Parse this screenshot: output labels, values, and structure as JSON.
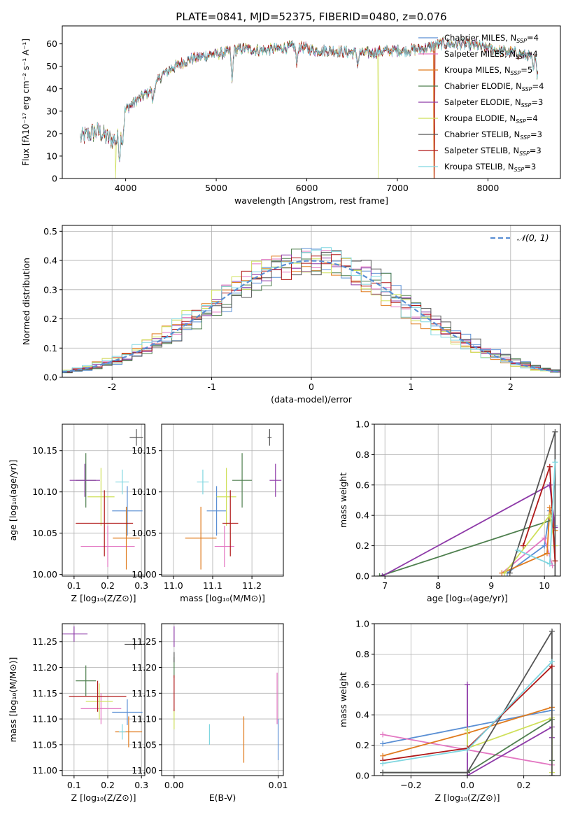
{
  "figure_title": "PLATE=0841, MJD=52375, FIBERID=0480, z=0.076",
  "colors": [
    "#5a8fd4",
    "#e377c2",
    "#e07b1e",
    "#4e7f4e",
    "#8e3aa8",
    "#cfe05a",
    "#555555",
    "#b01818",
    "#7fd6e0"
  ],
  "chart_data": [
    {
      "id": "spectrum",
      "type": "line",
      "xlabel": "wavelength [Angstrom, rest frame]",
      "ylabel": "Flux [fλ10⁻¹⁷ erg cm⁻² s⁻¹ A⁻¹]",
      "xlim": [
        3300,
        8800
      ],
      "ylim": [
        0,
        68
      ],
      "xticks": [
        4000,
        5000,
        6000,
        7000,
        8000
      ],
      "yticks": [
        0,
        10,
        20,
        30,
        40,
        50,
        60
      ],
      "grid": false,
      "legend_position": "upper-right",
      "series": [
        {
          "name": "Chabrier MILES, N",
          "suffix": "=4",
          "color": "#5a8fd4"
        },
        {
          "name": "Salpeter MILES, N",
          "suffix": "=4",
          "color": "#e377c2"
        },
        {
          "name": "Kroupa MILES, N",
          "suffix": "=5",
          "color": "#e07b1e"
        },
        {
          "name": "Chabrier ELODIE, N",
          "suffix": "=4",
          "color": "#4e7f4e"
        },
        {
          "name": "Salpeter ELODIE, N",
          "suffix": "=3",
          "color": "#8e3aa8"
        },
        {
          "name": "Kroupa ELODIE, N",
          "suffix": "=4",
          "color": "#cfe05a"
        },
        {
          "name": "Chabrier STELIB, N",
          "suffix": "=3",
          "color": "#555555"
        },
        {
          "name": "Salpeter STELIB, N",
          "suffix": "=3",
          "color": "#b01818"
        },
        {
          "name": "Kroupa STELIB, N",
          "suffix": "=3",
          "color": "#7fd6e0"
        }
      ],
      "legend_subscript": "SSP",
      "continuum": {
        "x": [
          3500,
          3600,
          3700,
          3800,
          3900,
          3950,
          4000,
          4100,
          4200,
          4300,
          4400,
          4500,
          4700,
          4900,
          5100,
          5300,
          5500,
          5700,
          5900,
          6100,
          6300,
          6500,
          6700,
          6900,
          7100,
          7300,
          7500,
          7700,
          7900,
          8100,
          8300,
          8500
        ],
        "y": [
          18,
          20,
          21,
          18,
          17,
          22,
          31,
          34,
          37,
          40,
          46,
          49,
          53,
          55,
          56,
          58,
          57,
          58,
          59,
          57,
          57,
          56,
          56,
          57,
          57,
          58,
          60,
          60,
          59,
          57,
          56,
          54
        ]
      },
      "dips": [
        {
          "series": 5,
          "x": 3890,
          "y": 0
        },
        {
          "series": 5,
          "x": 6790,
          "y": 0
        },
        {
          "series": 7,
          "x": 7410,
          "y": 0
        },
        {
          "series": 2,
          "x": 7405,
          "y": 0
        }
      ],
      "features": [
        {
          "x": 3934,
          "depth": 10
        },
        {
          "x": 3968,
          "depth": 8
        },
        {
          "x": 4300,
          "depth": 6
        },
        {
          "x": 5175,
          "depth": 14
        },
        {
          "x": 5890,
          "depth": 9
        },
        {
          "x": 6563,
          "depth": 5
        },
        {
          "x": 8500,
          "depth": 6
        },
        {
          "x": 8542,
          "depth": 7
        },
        {
          "x": 8662,
          "depth": 6
        }
      ]
    },
    {
      "id": "residuals",
      "type": "step",
      "xlabel": "(data-model)/error",
      "ylabel": "Normed distribution",
      "xlim": [
        -2.5,
        2.5
      ],
      "ylim": [
        0,
        0.52
      ],
      "xticks": [
        -2,
        -1,
        0,
        1,
        2
      ],
      "yticks": [
        0.0,
        0.1,
        0.2,
        0.3,
        0.4,
        0.5
      ],
      "ytick_labels": [
        "0.0",
        "0.1",
        "0.2",
        "0.3",
        "0.4",
        "0.5"
      ],
      "grid": true,
      "legend_position": "upper-right",
      "reference_curve": {
        "label": "𝒩(0, 1)",
        "mean": 0,
        "sigma": 1,
        "color": "#5a8fd4"
      },
      "bin_width": 0.1,
      "bin_start": -2.5
    },
    {
      "id": "age-vs-Z",
      "type": "errorbar",
      "xlabel": "Z [log₁₀(Z/Z⊙)]",
      "ylabel": "age  [log₁₀(age/yr)]",
      "xlim": [
        0.065,
        0.31
      ],
      "ylim": [
        9.998,
        10.182
      ],
      "xticks": [
        0.1,
        0.2,
        0.3
      ],
      "xtick_labels": [
        "0.1",
        "0.2",
        "0.3"
      ],
      "yticks": [
        10.0,
        10.05,
        10.1,
        10.15
      ],
      "ytick_labels": [
        "10.00",
        "10.05",
        "10.10",
        "10.15"
      ],
      "grid": true,
      "points": [
        {
          "series": 0,
          "x": 0.258,
          "y": 10.077,
          "xerr": 0.045,
          "yerr": 0.03
        },
        {
          "series": 1,
          "x": 0.2,
          "y": 10.034,
          "xerr": 0.08,
          "yerr": 0.025
        },
        {
          "series": 2,
          "x": 0.255,
          "y": 10.044,
          "xerr": 0.04,
          "yerr": 0.038
        },
        {
          "series": 3,
          "x": 0.135,
          "y": 10.114,
          "xerr": 0.03,
          "yerr": 0.033
        },
        {
          "series": 4,
          "x": 0.132,
          "y": 10.114,
          "xerr": 0.045,
          "yerr": 0.02
        },
        {
          "series": 5,
          "x": 0.18,
          "y": 10.094,
          "xerr": 0.04,
          "yerr": 0.035
        },
        {
          "series": 6,
          "x": 0.285,
          "y": 10.166,
          "xerr": 0.02,
          "yerr": 0.01
        },
        {
          "series": 7,
          "x": 0.19,
          "y": 10.062,
          "xerr": 0.085,
          "yerr": 0.04
        },
        {
          "series": 8,
          "x": 0.243,
          "y": 10.112,
          "xerr": 0.02,
          "yerr": 0.015
        }
      ]
    },
    {
      "id": "age-vs-mass",
      "type": "errorbar",
      "xlabel": "mass [log₁₀(M/M⊙)]",
      "xlim": [
        10.97,
        11.28
      ],
      "ylim": [
        9.998,
        10.182
      ],
      "xticks": [
        11.0,
        11.1,
        11.2
      ],
      "xtick_labels": [
        "11.0",
        "11.1",
        "11.2"
      ],
      "yticks": [
        10.0,
        10.05,
        10.1,
        10.15
      ],
      "ytick_labels": [
        "10.00",
        "10.05",
        "10.10",
        "10.15"
      ],
      "grid": true,
      "points": [
        {
          "series": 0,
          "x": 11.11,
          "y": 10.077,
          "xerr": 0.025,
          "yerr": 0.03
        },
        {
          "series": 1,
          "x": 11.13,
          "y": 10.034,
          "xerr": 0.025,
          "yerr": 0.025
        },
        {
          "series": 2,
          "x": 11.07,
          "y": 10.044,
          "xerr": 0.04,
          "yerr": 0.038
        },
        {
          "series": 3,
          "x": 11.175,
          "y": 10.114,
          "xerr": 0.025,
          "yerr": 0.033
        },
        {
          "series": 4,
          "x": 11.26,
          "y": 10.114,
          "xerr": 0.015,
          "yerr": 0.02
        },
        {
          "series": 5,
          "x": 11.135,
          "y": 10.094,
          "xerr": 0.025,
          "yerr": 0.035
        },
        {
          "series": 6,
          "x": 11.245,
          "y": 10.166,
          "xerr": 0.005,
          "yerr": 0.01
        },
        {
          "series": 7,
          "x": 11.145,
          "y": 10.062,
          "xerr": 0.02,
          "yerr": 0.04
        },
        {
          "series": 8,
          "x": 11.075,
          "y": 10.112,
          "xerr": 0.015,
          "yerr": 0.015
        }
      ]
    },
    {
      "id": "weight-vs-age",
      "type": "line",
      "xlabel": "age  [log₁₀(age/yr)]",
      "ylabel": "mass weight",
      "xlim": [
        6.8,
        10.3
      ],
      "ylim": [
        0,
        1.0
      ],
      "xticks": [
        7,
        8,
        9,
        10
      ],
      "yticks": [
        0.0,
        0.2,
        0.4,
        0.6,
        0.8,
        1.0
      ],
      "ytick_labels": [
        "0.0",
        "0.2",
        "0.4",
        "0.6",
        "0.8",
        "1.0"
      ],
      "grid": true,
      "series": [
        {
          "series": 0,
          "x": [
            9.3,
            10.0,
            10.1,
            10.2
          ],
          "y": [
            0.02,
            0.2,
            0.43,
            0.33
          ]
        },
        {
          "series": 1,
          "x": [
            9.2,
            10.0,
            10.15
          ],
          "y": [
            0.02,
            0.25,
            0.07
          ]
        },
        {
          "series": 2,
          "x": [
            9.2,
            10.05,
            10.1,
            10.2
          ],
          "y": [
            0.02,
            0.15,
            0.45,
            0.3
          ]
        },
        {
          "series": 3,
          "x": [
            6.9,
            10.15,
            10.2
          ],
          "y": [
            0.0,
            0.37,
            0.1
          ]
        },
        {
          "series": 4,
          "x": [
            6.95,
            10.1,
            10.2
          ],
          "y": [
            0.0,
            0.6,
            0.32
          ]
        },
        {
          "series": 5,
          "x": [
            9.25,
            10.1,
            10.2
          ],
          "y": [
            0.02,
            0.4,
            0.2
          ]
        },
        {
          "series": 6,
          "x": [
            9.35,
            10.2,
            10.2
          ],
          "y": [
            0.02,
            0.95,
            0.0
          ]
        },
        {
          "series": 7,
          "x": [
            9.6,
            10.1,
            10.2
          ],
          "y": [
            0.2,
            0.72,
            0.1
          ]
        },
        {
          "series": 8,
          "x": [
            9.5,
            10.1,
            10.2
          ],
          "y": [
            0.17,
            0.08,
            0.75
          ]
        }
      ]
    },
    {
      "id": "mass-vs-Z",
      "type": "errorbar",
      "xlabel": "Z [log₁₀(Z/Z⊙)]",
      "ylabel": "mass [log₁₀(M/M⊙)]",
      "xlim": [
        0.065,
        0.31
      ],
      "ylim": [
        10.99,
        11.285
      ],
      "xticks": [
        0.1,
        0.2,
        0.3
      ],
      "xtick_labels": [
        "0.1",
        "0.2",
        "0.3"
      ],
      "yticks": [
        11.0,
        11.05,
        11.1,
        11.15,
        11.2,
        11.25
      ],
      "ytick_labels": [
        "11.00",
        "11.05",
        "11.10",
        "11.15",
        "11.20",
        "11.25"
      ],
      "grid": true,
      "points": [
        {
          "series": 0,
          "x": 0.258,
          "y": 11.113,
          "xerr": 0.045,
          "yerr": 0.025
        },
        {
          "series": 1,
          "x": 0.18,
          "y": 11.12,
          "xerr": 0.06,
          "yerr": 0.03
        },
        {
          "series": 2,
          "x": 0.262,
          "y": 11.075,
          "xerr": 0.04,
          "yerr": 0.03
        },
        {
          "series": 3,
          "x": 0.135,
          "y": 11.174,
          "xerr": 0.03,
          "yerr": 0.03
        },
        {
          "series": 4,
          "x": 0.1,
          "y": 11.265,
          "xerr": 0.04,
          "yerr": 0.015
        },
        {
          "series": 5,
          "x": 0.175,
          "y": 11.134,
          "xerr": 0.04,
          "yerr": 0.035
        },
        {
          "series": 6,
          "x": 0.28,
          "y": 11.245,
          "xerr": 0.03,
          "yerr": 0.01
        },
        {
          "series": 7,
          "x": 0.17,
          "y": 11.144,
          "xerr": 0.085,
          "yerr": 0.03
        },
        {
          "series": 8,
          "x": 0.243,
          "y": 11.075,
          "xerr": 0.01,
          "yerr": 0.015
        }
      ]
    },
    {
      "id": "mass-vs-EBV",
      "type": "errorbar",
      "xlabel": "E(B-V)",
      "xlim": [
        -0.0012,
        0.0105
      ],
      "ylim": [
        10.99,
        11.285
      ],
      "xticks": [
        0.0,
        0.01
      ],
      "xtick_labels": [
        "0.00",
        "0.01"
      ],
      "yticks": [
        11.0,
        11.05,
        11.1,
        11.15,
        11.2,
        11.25
      ],
      "ytick_labels": [
        "11.00",
        "11.05",
        "11.10",
        "11.15",
        "11.20",
        "11.25"
      ],
      "grid": true,
      "points": [
        {
          "series": 0,
          "x": 0.01,
          "y": 11.06,
          "xerr": 0,
          "yerr": 0.04
        },
        {
          "series": 1,
          "x": 0.0099,
          "y": 11.14,
          "xerr": 0,
          "yerr": 0.05
        },
        {
          "series": 2,
          "x": 0.0067,
          "y": 11.06,
          "xerr": 0,
          "yerr": 0.045
        },
        {
          "series": 3,
          "x": 0.0,
          "y": 11.2,
          "xerr": 0,
          "yerr": 0.02
        },
        {
          "series": 4,
          "x": 0.0,
          "y": 11.26,
          "xerr": 0,
          "yerr": 0.02
        },
        {
          "series": 5,
          "x": 0.0,
          "y": 11.1,
          "xerr": 0,
          "yerr": 0.02
        },
        {
          "series": 6,
          "x": 0.0,
          "y": 11.22,
          "xerr": 0,
          "yerr": 0.01
        },
        {
          "series": 7,
          "x": 0.0,
          "y": 11.15,
          "xerr": 0,
          "yerr": 0.035
        },
        {
          "series": 8,
          "x": 0.0034,
          "y": 11.07,
          "xerr": 0,
          "yerr": 0.02
        }
      ]
    },
    {
      "id": "weight-vs-Z",
      "type": "line",
      "xlabel": "Z [log₁₀(Z/Z⊙)]",
      "ylabel": "mass weight",
      "xlim": [
        -0.33,
        0.33
      ],
      "ylim": [
        0,
        1.0
      ],
      "xticks": [
        -0.2,
        0.0,
        0.2
      ],
      "xtick_labels": [
        "−0.2",
        "0.0",
        "0.2"
      ],
      "yticks": [
        0.0,
        0.2,
        0.4,
        0.6,
        0.8,
        1.0
      ],
      "ytick_labels": [
        "0.0",
        "0.2",
        "0.4",
        "0.6",
        "0.8",
        "1.0"
      ],
      "grid": true,
      "series": [
        {
          "series": 0,
          "x": [
            -0.3,
            0.0,
            0.3
          ],
          "y": [
            0.21,
            0.32,
            0.43
          ]
        },
        {
          "series": 1,
          "x": [
            -0.3,
            0.3
          ],
          "y": [
            0.27,
            0.07
          ]
        },
        {
          "series": 2,
          "x": [
            -0.3,
            0.0,
            0.3
          ],
          "y": [
            0.13,
            0.28,
            0.45
          ]
        },
        {
          "series": 3,
          "x": [
            -0.3,
            0.0,
            0.3,
            0.3
          ],
          "y": [
            0.02,
            0.02,
            0.37,
            0.1
          ]
        },
        {
          "series": 4,
          "x": [
            0.0,
            0.0,
            0.3,
            0.3
          ],
          "y": [
            0.6,
            0.0,
            0.32,
            0.25
          ]
        },
        {
          "series": 5,
          "x": [
            0.0,
            0.0,
            0.3,
            0.3
          ],
          "y": [
            0.3,
            0.18,
            0.38,
            0.02
          ]
        },
        {
          "series": 6,
          "x": [
            -0.3,
            0.0,
            0.3,
            0.3
          ],
          "y": [
            0.02,
            0.02,
            0.95,
            0.0
          ]
        },
        {
          "series": 7,
          "x": [
            -0.3,
            0.0,
            0.3
          ],
          "y": [
            0.1,
            0.18,
            0.72
          ]
        },
        {
          "series": 8,
          "x": [
            -0.3,
            0.0,
            0.3
          ],
          "y": [
            0.08,
            0.17,
            0.75
          ]
        }
      ]
    }
  ]
}
